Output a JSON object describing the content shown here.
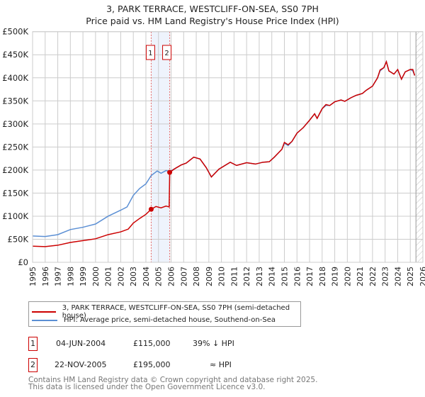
{
  "chart_data": {
    "type": "line",
    "title": "3, PARK TERRACE, WESTCLIFF-ON-SEA, SS0 7PH",
    "subtitle": "Price paid vs. HM Land Registry's House Price Index (HPI)",
    "xlim": [
      1995,
      2026
    ],
    "ylim": [
      0,
      500000
    ],
    "x_ticks": [
      "1995",
      "1996",
      "1997",
      "1998",
      "1999",
      "2000",
      "2001",
      "2002",
      "2003",
      "2004",
      "2005",
      "2006",
      "2007",
      "2008",
      "2009",
      "2010",
      "2011",
      "2012",
      "2013",
      "2014",
      "2015",
      "2016",
      "2017",
      "2018",
      "2019",
      "2020",
      "2021",
      "2022",
      "2023",
      "2024",
      "2025",
      "2026"
    ],
    "y_ticks": [
      {
        "v": 0,
        "l": "£0"
      },
      {
        "v": 50000,
        "l": "£50K"
      },
      {
        "v": 100000,
        "l": "£100K"
      },
      {
        "v": 150000,
        "l": "£150K"
      },
      {
        "v": 200000,
        "l": "£200K"
      },
      {
        "v": 250000,
        "l": "£250K"
      },
      {
        "v": 300000,
        "l": "£300K"
      },
      {
        "v": 350000,
        "l": "£350K"
      },
      {
        "v": 400000,
        "l": "£400K"
      },
      {
        "v": 450000,
        "l": "£450K"
      },
      {
        "v": 500000,
        "l": "£500K"
      }
    ],
    "grid": true,
    "shaded_range": [
      2004.42,
      2005.89
    ],
    "forecast_hatch_from": 2025.45,
    "series": [
      {
        "name": "3, PARK TERRACE, WESTCLIFF-ON-SEA, SS0 7PH (semi-detached house)",
        "color": "#cc0000",
        "points": [
          [
            1995,
            35000
          ],
          [
            1996,
            34000
          ],
          [
            1997,
            37000
          ],
          [
            1998,
            43000
          ],
          [
            1999,
            47000
          ],
          [
            2000,
            51000
          ],
          [
            2001,
            60000
          ],
          [
            2002,
            66000
          ],
          [
            2002.6,
            72000
          ],
          [
            2003,
            85000
          ],
          [
            2003.5,
            95000
          ],
          [
            2004,
            104000
          ],
          [
            2004.42,
            115000
          ],
          [
            2004.8,
            121000
          ],
          [
            2005.2,
            118000
          ],
          [
            2005.6,
            122000
          ],
          [
            2005.85,
            120000
          ],
          [
            2005.89,
            195000
          ],
          [
            2006.3,
            203000
          ],
          [
            2006.8,
            211000
          ],
          [
            2007.2,
            215000
          ],
          [
            2007.8,
            228000
          ],
          [
            2008.3,
            224000
          ],
          [
            2008.8,
            205000
          ],
          [
            2009.2,
            185000
          ],
          [
            2009.8,
            202000
          ],
          [
            2010.7,
            217000
          ],
          [
            2011.2,
            210000
          ],
          [
            2012,
            216000
          ],
          [
            2012.7,
            213000
          ],
          [
            2013.3,
            217000
          ],
          [
            2013.8,
            218000
          ],
          [
            2014.2,
            228000
          ],
          [
            2014.8,
            245000
          ],
          [
            2015.0,
            260000
          ],
          [
            2015.3,
            255000
          ],
          [
            2015.6,
            262000
          ],
          [
            2016,
            280000
          ],
          [
            2016.5,
            292000
          ],
          [
            2017,
            308000
          ],
          [
            2017.4,
            322000
          ],
          [
            2017.6,
            312000
          ],
          [
            2018,
            333000
          ],
          [
            2018.3,
            342000
          ],
          [
            2018.6,
            340000
          ],
          [
            2019,
            348000
          ],
          [
            2019.5,
            352000
          ],
          [
            2019.8,
            349000
          ],
          [
            2020.3,
            357000
          ],
          [
            2020.7,
            362000
          ],
          [
            2021.2,
            366000
          ],
          [
            2021.5,
            373000
          ],
          [
            2022,
            382000
          ],
          [
            2022.4,
            400000
          ],
          [
            2022.6,
            417000
          ],
          [
            2022.9,
            422000
          ],
          [
            2023.1,
            435000
          ],
          [
            2023.3,
            415000
          ],
          [
            2023.7,
            408000
          ],
          [
            2024,
            418000
          ],
          [
            2024.3,
            397000
          ],
          [
            2024.6,
            413000
          ],
          [
            2025,
            418000
          ],
          [
            2025.2,
            418000
          ],
          [
            2025.35,
            405000
          ]
        ]
      },
      {
        "name": "HPI: Average price, semi-detached house, Southend-on-Sea",
        "color": "#5b8fd4",
        "points": [
          [
            1995,
            57000
          ],
          [
            1996,
            56000
          ],
          [
            1997,
            60000
          ],
          [
            1998,
            71000
          ],
          [
            1999,
            76000
          ],
          [
            2000,
            83000
          ],
          [
            2001,
            100000
          ],
          [
            2002,
            113000
          ],
          [
            2002.5,
            120000
          ],
          [
            2003,
            145000
          ],
          [
            2003.5,
            160000
          ],
          [
            2004,
            170000
          ],
          [
            2004.42,
            188000
          ],
          [
            2004.9,
            198000
          ],
          [
            2005.2,
            193000
          ],
          [
            2005.6,
            199000
          ],
          [
            2005.89,
            197000
          ],
          [
            2006.3,
            203000
          ],
          [
            2006.8,
            211000
          ],
          [
            2007.2,
            215000
          ],
          [
            2007.8,
            228000
          ],
          [
            2008.3,
            224000
          ],
          [
            2008.8,
            205000
          ],
          [
            2009.2,
            185000
          ],
          [
            2009.8,
            202000
          ],
          [
            2010.7,
            217000
          ],
          [
            2011.2,
            210000
          ],
          [
            2012,
            216000
          ],
          [
            2012.7,
            213000
          ],
          [
            2013.3,
            217000
          ],
          [
            2013.8,
            218000
          ],
          [
            2014.2,
            228000
          ],
          [
            2014.8,
            245000
          ],
          [
            2015.0,
            258000
          ],
          [
            2015.3,
            253000
          ],
          [
            2015.6,
            262000
          ],
          [
            2016,
            280000
          ],
          [
            2016.5,
            292000
          ],
          [
            2017,
            308000
          ],
          [
            2017.4,
            322000
          ],
          [
            2017.6,
            312000
          ],
          [
            2018,
            333000
          ],
          [
            2018.3,
            340000
          ],
          [
            2018.6,
            340000
          ],
          [
            2019,
            348000
          ],
          [
            2019.5,
            352000
          ],
          [
            2019.8,
            349000
          ],
          [
            2020.3,
            357000
          ],
          [
            2020.7,
            362000
          ],
          [
            2021.2,
            366000
          ],
          [
            2021.5,
            373000
          ],
          [
            2022,
            382000
          ],
          [
            2022.4,
            400000
          ],
          [
            2022.6,
            415000
          ],
          [
            2022.9,
            422000
          ],
          [
            2023.1,
            435000
          ],
          [
            2023.3,
            415000
          ],
          [
            2023.7,
            408000
          ],
          [
            2024,
            418000
          ],
          [
            2024.3,
            397000
          ],
          [
            2024.6,
            413000
          ],
          [
            2025,
            418000
          ],
          [
            2025.2,
            415000
          ],
          [
            2025.35,
            405000
          ]
        ]
      }
    ],
    "sales": [
      {
        "id": "1",
        "x": 2004.42,
        "y": 115000,
        "date": "04-JUN-2004",
        "price": "£115,000",
        "vs": "39% ↓ HPI"
      },
      {
        "id": "2",
        "x": 2005.89,
        "y": 195000,
        "date": "22-NOV-2005",
        "price": "£195,000",
        "vs": "≈ HPI"
      }
    ]
  },
  "footer": {
    "line1": "Contains HM Land Registry data © Crown copyright and database right 2025.",
    "line2": "This data is licensed under the Open Government Licence v3.0."
  }
}
